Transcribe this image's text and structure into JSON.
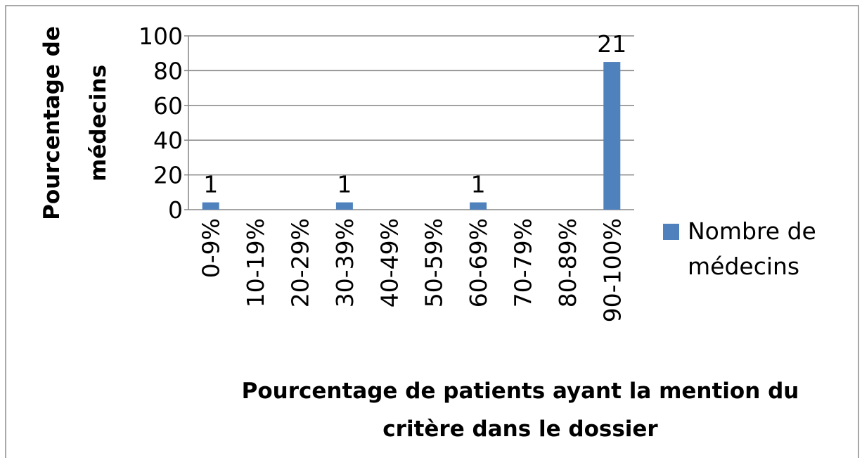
{
  "chart_data": {
    "type": "bar",
    "x_label": [
      "Pourcentage de patients ayant la mention du",
      "critère dans le dossier"
    ],
    "y_label": [
      "Pourcentage de",
      "médecins"
    ],
    "categories": [
      "0-9%",
      "10-19%",
      "20-29%",
      "30-39%",
      "40-49%",
      "50-59%",
      "60-69%",
      "70-79%",
      "80-89%",
      "90-100%"
    ],
    "series": [
      {
        "name": "Nombre de médecins",
        "color": "#4f81bd",
        "values": [
          4.2,
          0,
          0,
          4.2,
          0,
          0,
          4.2,
          0,
          0,
          85
        ],
        "value_labels": [
          "1",
          null,
          null,
          "1",
          null,
          null,
          "1",
          null,
          null,
          "21"
        ]
      }
    ],
    "ylim": [
      0,
      100
    ],
    "yticks": [
      0,
      20,
      40,
      60,
      80,
      100
    ],
    "grid": true,
    "legend": "right"
  }
}
